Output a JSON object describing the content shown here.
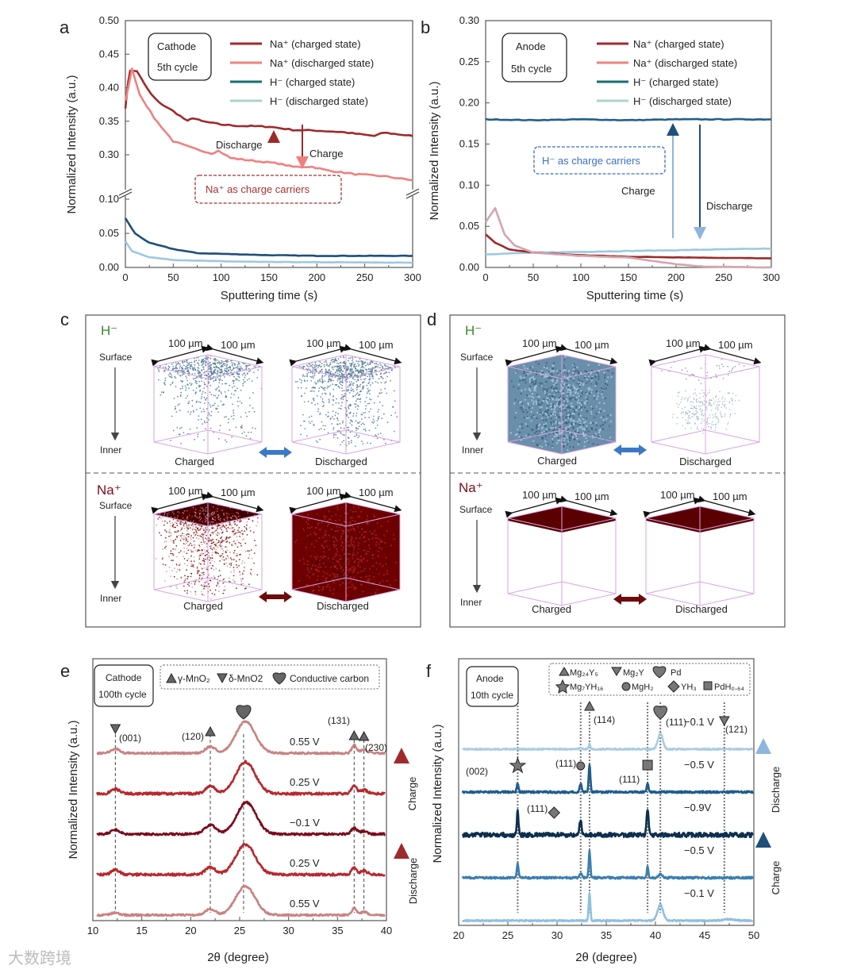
{
  "panels": {
    "a": {
      "letter": "a",
      "box_line1": "Cathode",
      "box_line2": "5th cycle",
      "discharge": "Discharge",
      "charge": "Charge",
      "carrier_note": "Na⁺ as charge carriers"
    },
    "b": {
      "letter": "b",
      "box_line1": "Anode",
      "box_line2": "5th cycle",
      "charge": "Charge",
      "discharge": "Discharge",
      "carrier_note": "H⁻ as charge carriers"
    },
    "c": {
      "letter": "c",
      "h_label": "H⁻",
      "na_label": "Na⁺",
      "surface": "Surface",
      "inner": "Inner",
      "charged": "Charged",
      "discharged": "Discharged",
      "scale": "100 µm"
    },
    "d": {
      "letter": "d",
      "h_label": "H⁻",
      "na_label": "Na⁺",
      "surface": "Surface",
      "inner": "Inner",
      "charged": "Charged",
      "discharged": "Discharged",
      "scale": "100 µm"
    },
    "e": {
      "letter": "e",
      "box_line1": "Cathode",
      "box_line2": "100th cycle",
      "charge": "Charge",
      "discharge": "Discharge",
      "legend": [
        "γ-MnO₂",
        "δ-MnO2",
        "Conductive carbon"
      ],
      "peak_labels": [
        "(001)",
        "(120)",
        "(131)",
        "(230)"
      ]
    },
    "f": {
      "letter": "f",
      "box_line1": "Anode",
      "box_line2": "10th cycle",
      "charge": "Charge",
      "discharge": "Discharge",
      "legend": [
        "Mg₂₄Y₅",
        "Mg₂Y",
        "Pd",
        "Mg₇YH₁₆",
        "MgH₂",
        "YH₃",
        "PdH₀.₆₄"
      ],
      "peak_labels": [
        "(002)",
        "(111)",
        "(111)",
        "(111)",
        "(114)",
        "(111)",
        "(121)"
      ]
    }
  },
  "legend_series": [
    "Na⁺ (charged state)",
    "Na⁺ (discharged state)",
    "H⁻ (charged state)",
    "H⁻ (discharged state)"
  ],
  "colors": {
    "na_charged": "#9e2a2b",
    "na_discharged": "#f08080",
    "h_charged": "#1a6e72",
    "h_discharged": "#a8d5cc",
    "h_charged_line": "#1f4f7a",
    "h_discharged_line": "#9cc8e4",
    "purple_box": "#d9a3e6"
  },
  "watermark": "大数跨境",
  "chart_data": [
    {
      "id": "a",
      "type": "line",
      "xlabel": "Sputtering time (s)",
      "ylabel": "Normalized Intensity (a.u.)",
      "xlim": [
        0,
        300
      ],
      "ylim_upper": [
        0.25,
        0.5
      ],
      "ylim_lower": [
        0,
        0.1
      ],
      "xticks": [
        "0",
        "50",
        "100",
        "150",
        "200",
        "250",
        "300"
      ],
      "yticks_upper": [
        "0.50",
        "0.45",
        "0.40",
        "0.35",
        "0.30"
      ],
      "yticks_lower": [
        "0.10",
        "0.05",
        "0.00"
      ],
      "series": [
        {
          "name": "Na⁺ (charged state)",
          "points": [
            [
              0,
              0.37
            ],
            [
              3,
              0.41
            ],
            [
              5,
              0.425
            ],
            [
              12,
              0.425
            ],
            [
              20,
              0.405
            ],
            [
              27,
              0.39
            ],
            [
              35,
              0.378
            ],
            [
              50,
              0.365
            ],
            [
              65,
              0.35
            ],
            [
              70,
              0.355
            ],
            [
              80,
              0.35
            ],
            [
              100,
              0.345
            ],
            [
              120,
              0.343
            ],
            [
              150,
              0.342
            ],
            [
              175,
              0.337
            ],
            [
              200,
              0.336
            ],
            [
              225,
              0.334
            ],
            [
              260,
              0.328
            ],
            [
              270,
              0.333
            ],
            [
              300,
              0.328
            ]
          ]
        },
        {
          "name": "Na⁺ (discharged state)",
          "points": [
            [
              0,
              0.38
            ],
            [
              7,
              0.428
            ],
            [
              15,
              0.39
            ],
            [
              30,
              0.355
            ],
            [
              50,
              0.32
            ],
            [
              70,
              0.31
            ],
            [
              90,
              0.302
            ],
            [
              97,
              0.306
            ],
            [
              110,
              0.295
            ],
            [
              140,
              0.29
            ],
            [
              160,
              0.287
            ],
            [
              175,
              0.282
            ],
            [
              195,
              0.282
            ],
            [
              210,
              0.277
            ],
            [
              240,
              0.271
            ],
            [
              270,
              0.268
            ],
            [
              300,
              0.262
            ]
          ]
        },
        {
          "name": "H⁻ (charged state)",
          "points": [
            [
              0,
              0.072
            ],
            [
              10,
              0.05
            ],
            [
              25,
              0.036
            ],
            [
              50,
              0.027
            ],
            [
              75,
              0.021
            ],
            [
              100,
              0.02
            ],
            [
              150,
              0.018
            ],
            [
              200,
              0.017
            ],
            [
              300,
              0.017
            ]
          ]
        },
        {
          "name": "H⁻ (discharged state)",
          "points": [
            [
              0,
              0.038
            ],
            [
              7,
              0.024
            ],
            [
              25,
              0.015
            ],
            [
              50,
              0.011
            ],
            [
              100,
              0.009
            ],
            [
              150,
              0.008
            ],
            [
              300,
              0.007
            ]
          ]
        }
      ]
    },
    {
      "id": "b",
      "type": "line",
      "xlabel": "Sputtering time (s)",
      "ylabel": "Normalized Intensity (a.u.)",
      "xlim": [
        0,
        300
      ],
      "ylim": [
        0,
        0.3
      ],
      "xticks": [
        "0",
        "50",
        "100",
        "150",
        "200",
        "250",
        "300"
      ],
      "yticks": [
        "0.30",
        "0.25",
        "0.20",
        "0.15",
        "0.10",
        "0.05",
        "0.00"
      ],
      "series": [
        {
          "name": "H⁻ (charged state)",
          "points": [
            [
              0,
              0.18
            ],
            [
              50,
              0.179
            ],
            [
              100,
              0.18
            ],
            [
              150,
              0.179
            ],
            [
              200,
              0.18
            ],
            [
              250,
              0.18
            ],
            [
              300,
              0.18
            ]
          ]
        },
        {
          "name": "H⁻ (discharged state)",
          "points": [
            [
              0,
              0.016
            ],
            [
              50,
              0.018
            ],
            [
              150,
              0.02
            ],
            [
              300,
              0.023
            ]
          ]
        },
        {
          "name": "Na⁺ (charged state)",
          "points": [
            [
              0,
              0.04
            ],
            [
              10,
              0.03
            ],
            [
              25,
              0.022
            ],
            [
              50,
              0.018
            ],
            [
              100,
              0.015
            ],
            [
              150,
              0.013
            ],
            [
              300,
              0.011
            ]
          ]
        },
        {
          "name": "Na⁺ (discharged state)",
          "points": [
            [
              0,
              0.055
            ],
            [
              10,
              0.072
            ],
            [
              20,
              0.04
            ],
            [
              30,
              0.027
            ],
            [
              50,
              0.018
            ],
            [
              100,
              0.014
            ],
            [
              150,
              0.012
            ],
            [
              200,
              0.004
            ],
            [
              230,
              0.001
            ],
            [
              300,
              0
            ]
          ]
        }
      ]
    },
    {
      "id": "e",
      "type": "line",
      "xlabel": "2θ (degree)",
      "ylabel": "Normalized Intensity (a.u.)",
      "xlim": [
        10,
        40
      ],
      "xticks": [
        "10",
        "15",
        "20",
        "25",
        "30",
        "35",
        "40"
      ],
      "reference_lines": [
        12.3,
        22.0,
        25.4,
        36.7,
        37.7
      ],
      "traces": [
        {
          "label": "0.55 V",
          "offset": 0,
          "noise": 0.03,
          "color": "#c98282",
          "peaks": [
            [
              12.3,
              0.08,
              0.6
            ],
            [
              22.0,
              0.2,
              0.7
            ],
            [
              25.6,
              0.95,
              1.4
            ],
            [
              36.7,
              0.22,
              0.35
            ],
            [
              37.7,
              0.1,
              0.5
            ]
          ]
        },
        {
          "label": "0.25 V",
          "offset": 1,
          "noise": 0.04,
          "color": "#b8282e",
          "peaks": [
            [
              12.3,
              0.15,
              0.6
            ],
            [
              22.0,
              0.25,
              0.7
            ],
            [
              25.6,
              1.0,
              1.4
            ],
            [
              36.7,
              0.25,
              0.35
            ],
            [
              37.7,
              0.12,
              0.5
            ]
          ]
        },
        {
          "label": "−0.1 V",
          "offset": 2,
          "noise": 0.035,
          "color": "#7a0c1c",
          "peaks": [
            [
              12.3,
              0.15,
              0.6
            ],
            [
              22.0,
              0.3,
              0.8
            ],
            [
              25.7,
              1.05,
              1.4
            ],
            [
              36.7,
              0.2,
              0.4
            ],
            [
              37.7,
              0.1,
              0.5
            ]
          ]
        },
        {
          "label": "0.25 V",
          "offset": 3,
          "noise": 0.04,
          "color": "#b8282e",
          "peaks": [
            [
              12.3,
              0.15,
              0.6
            ],
            [
              22.0,
              0.25,
              0.7
            ],
            [
              25.6,
              1.05,
              1.4
            ],
            [
              36.7,
              0.27,
              0.35
            ],
            [
              37.7,
              0.12,
              0.5
            ]
          ]
        },
        {
          "label": "0.55 V",
          "offset": 4,
          "noise": 0.03,
          "color": "#c98282",
          "peaks": [
            [
              12.3,
              0.15,
              0.6
            ],
            [
              22.0,
              0.22,
              0.7
            ],
            [
              25.6,
              1.05,
              1.4
            ],
            [
              36.7,
              0.27,
              0.35
            ],
            [
              37.7,
              0.12,
              0.5
            ]
          ]
        }
      ]
    },
    {
      "id": "f",
      "type": "line",
      "xlabel": "2θ (degree)",
      "ylabel": "Normalized Intensity (a.u.)",
      "xlim": [
        20,
        50
      ],
      "xticks": [
        "20",
        "25",
        "30",
        "35",
        "40",
        "45",
        "50"
      ],
      "reference_lines": [
        26.0,
        32.4,
        33.3,
        39.2,
        40.5,
        47.0
      ],
      "traces": [
        {
          "label": "−0.1 V",
          "offset": 0,
          "noise": 0.04,
          "color": "#8fc0e0",
          "peaks": [
            [
              33.3,
              1.6,
              0.12
            ],
            [
              40.5,
              0.9,
              0.4
            ],
            [
              47.5,
              0.08,
              0.8
            ]
          ]
        },
        {
          "label": "−0.5 V",
          "offset": 1,
          "noise": 0.06,
          "color": "#3a7eb0",
          "peaks": [
            [
              26.0,
              0.8,
              0.12
            ],
            [
              32.4,
              0.3,
              0.15
            ],
            [
              33.3,
              1.5,
              0.12
            ],
            [
              39.2,
              0.6,
              0.12
            ],
            [
              40.5,
              0.2,
              0.3
            ]
          ]
        },
        {
          "label": "−0.9V",
          "offset": 2,
          "noise": 0.13,
          "color": "#0d2e4e",
          "peaks": [
            [
              26.0,
              1.5,
              0.12
            ],
            [
              32.4,
              0.9,
              0.15
            ],
            [
              39.2,
              1.5,
              0.15
            ]
          ]
        },
        {
          "label": "−0.5 V",
          "offset": 3,
          "noise": 0.06,
          "color": "#1f5c8c",
          "peaks": [
            [
              26.0,
              0.5,
              0.12
            ],
            [
              32.4,
              0.45,
              0.15
            ],
            [
              33.3,
              1.6,
              0.12
            ],
            [
              39.2,
              0.5,
              0.12
            ]
          ]
        },
        {
          "label": "−0.1 V",
          "offset": 4,
          "noise": 0.04,
          "color": "#a8cde6",
          "peaks": [
            [
              32.4,
              0.1,
              0.15
            ],
            [
              33.3,
              0.3,
              0.12
            ],
            [
              40.5,
              0.9,
              0.35
            ]
          ]
        }
      ]
    }
  ]
}
